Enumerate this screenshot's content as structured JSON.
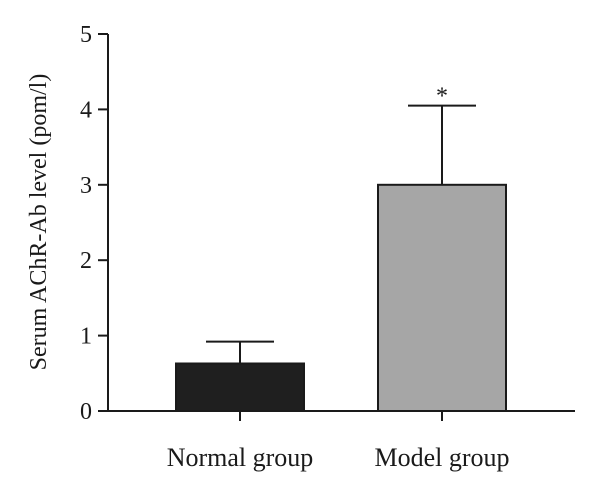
{
  "chart_data": {
    "type": "bar",
    "categories": [
      "Normal group",
      "Model group"
    ],
    "series": [
      {
        "values": [
          0.63,
          3.0
        ],
        "errors": [
          0.29,
          1.05
        ],
        "colors": [
          "#1f1f1f",
          "#a6a6a6"
        ]
      }
    ],
    "annotations": [
      "",
      "*"
    ],
    "title": "",
    "xlabel": "",
    "ylabel": "Serum AChR-Ab level (pom/l)",
    "ylim": [
      0,
      5
    ],
    "yticks": [
      0,
      1,
      2,
      3,
      4,
      5
    ],
    "grid": false,
    "legend": "none"
  }
}
